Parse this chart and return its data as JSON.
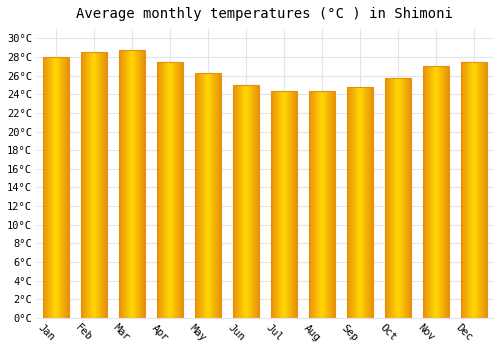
{
  "title": "Average monthly temperatures (°C ) in Shimoni",
  "months": [
    "Jan",
    "Feb",
    "Mar",
    "Apr",
    "May",
    "Jun",
    "Jul",
    "Aug",
    "Sep",
    "Oct",
    "Nov",
    "Dec"
  ],
  "values": [
    28.0,
    28.5,
    28.8,
    27.5,
    26.3,
    25.0,
    24.4,
    24.4,
    24.8,
    25.8,
    27.0,
    27.5
  ],
  "bar_color_center": "#FFD700",
  "bar_color_edge": "#E8900A",
  "background_color": "#ffffff",
  "plot_bg_color": "#ffffff",
  "grid_color": "#e0e4ec",
  "ylim": [
    0,
    31
  ],
  "ytick_step": 2,
  "title_fontsize": 10,
  "tick_fontsize": 7.5,
  "bar_width": 0.7,
  "xlabel_rotation": -45
}
